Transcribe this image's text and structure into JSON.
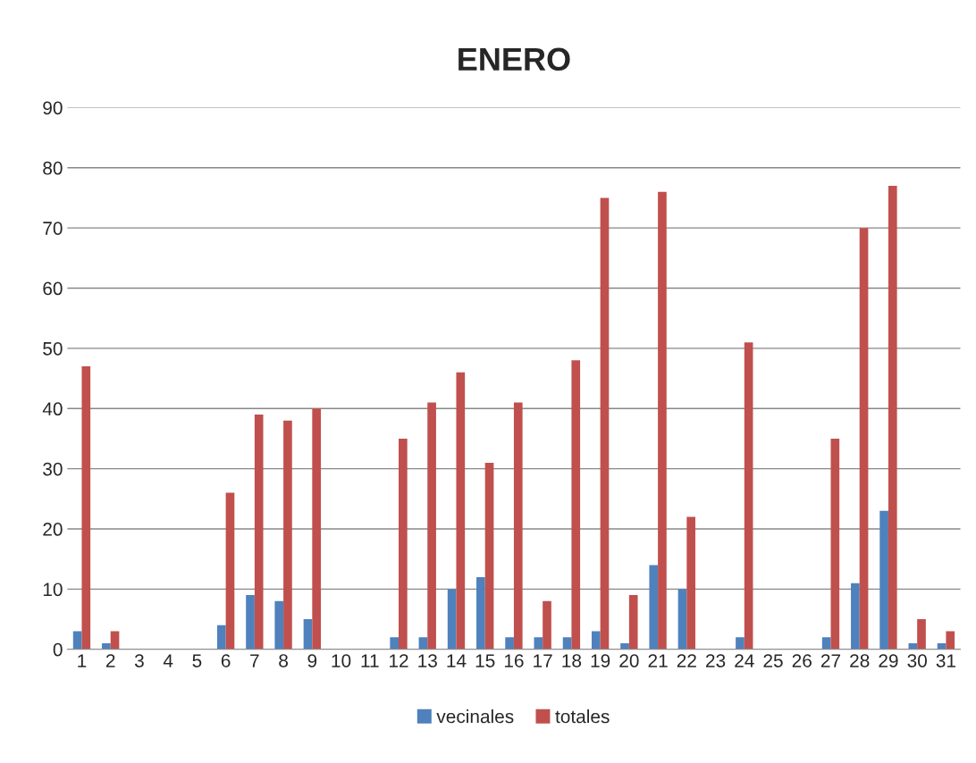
{
  "chart_data": {
    "type": "bar",
    "title": "ENERO",
    "categories": [
      "1",
      "2",
      "3",
      "4",
      "5",
      "6",
      "7",
      "8",
      "9",
      "10",
      "11",
      "12",
      "13",
      "14",
      "15",
      "16",
      "17",
      "18",
      "19",
      "20",
      "21",
      "22",
      "23",
      "24",
      "25",
      "26",
      "27",
      "28",
      "29",
      "30",
      "31"
    ],
    "series": [
      {
        "name": "vecinales",
        "color": "#4f81bd",
        "values": [
          3,
          1,
          0,
          0,
          0,
          4,
          9,
          8,
          5,
          0,
          0,
          2,
          2,
          10,
          12,
          2,
          2,
          2,
          3,
          1,
          14,
          10,
          0,
          2,
          0,
          0,
          2,
          11,
          23,
          1,
          1
        ]
      },
      {
        "name": "totales",
        "color": "#c0504d",
        "values": [
          47,
          3,
          0,
          0,
          0,
          26,
          39,
          38,
          40,
          0,
          0,
          35,
          41,
          46,
          31,
          41,
          8,
          48,
          75,
          9,
          76,
          22,
          0,
          51,
          0,
          0,
          35,
          70,
          77,
          5,
          3
        ]
      }
    ],
    "ylim": [
      0,
      90
    ],
    "yticks": [
      0,
      10,
      20,
      30,
      40,
      50,
      60,
      70,
      80,
      90
    ],
    "grid": "y",
    "legend": "bottom"
  }
}
